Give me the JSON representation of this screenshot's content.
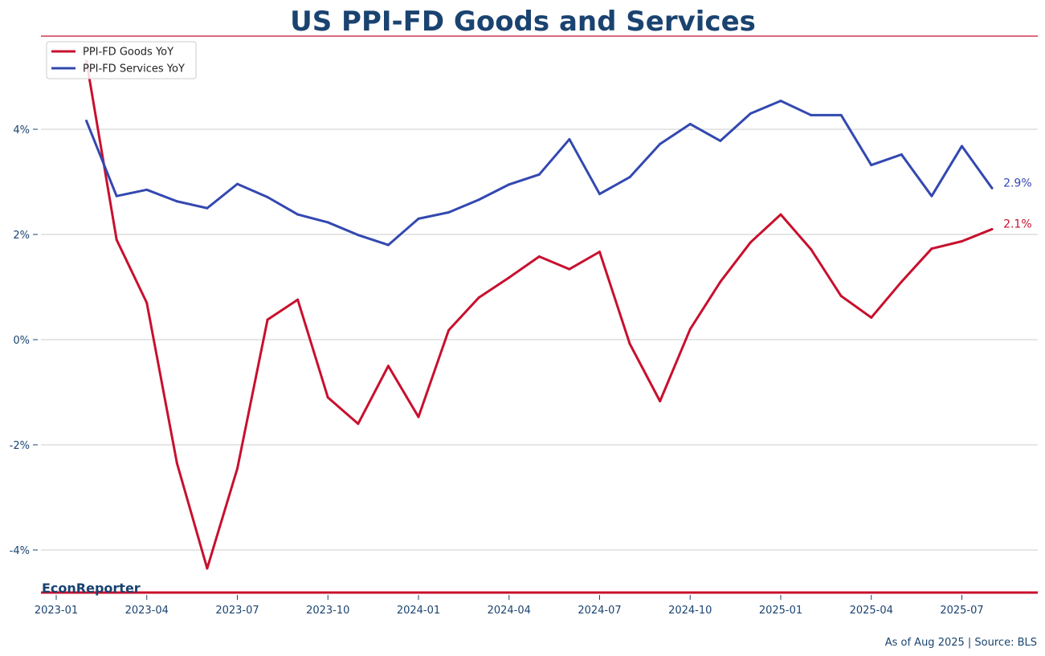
{
  "chart_data": {
    "type": "line",
    "title": "US PPI-FD Goods and Services",
    "x": [
      "2023-02",
      "2023-03",
      "2023-04",
      "2023-05",
      "2023-06",
      "2023-07",
      "2023-08",
      "2023-09",
      "2023-10",
      "2023-11",
      "2023-12",
      "2024-01",
      "2024-02",
      "2024-03",
      "2024-04",
      "2024-05",
      "2024-06",
      "2024-07",
      "2024-08",
      "2024-09",
      "2024-10",
      "2024-11",
      "2024-12",
      "2025-01",
      "2025-02",
      "2025-03",
      "2025-04",
      "2025-05",
      "2025-06",
      "2025-07",
      "2025-08"
    ],
    "x_ticks": [
      "2023-01",
      "2023-04",
      "2023-07",
      "2023-10",
      "2024-01",
      "2024-04",
      "2024-07",
      "2024-10",
      "2025-01",
      "2025-04",
      "2025-07"
    ],
    "y_ticks": [
      "-4%",
      "-2%",
      "0%",
      "2%",
      "4%"
    ],
    "ylim": [
      -4.8,
      5.8
    ],
    "grid": true,
    "legend_position": "top-left",
    "series": [
      {
        "name": "PPI-FD Goods YoY",
        "color": "#c8102e",
        "end_label": "2.1%",
        "values": [
          5.3,
          1.9,
          0.7,
          -2.35,
          -4.35,
          -2.45,
          0.38,
          0.76,
          -1.1,
          -1.6,
          -0.5,
          -1.47,
          0.18,
          0.8,
          1.18,
          1.58,
          1.34,
          1.67,
          -0.08,
          -1.17,
          0.2,
          1.1,
          1.85,
          2.38,
          1.72,
          0.83,
          0.42,
          1.1,
          1.73,
          1.87,
          2.1
        ]
      },
      {
        "name": "PPI-FD Services YoY",
        "color": "#3348b0",
        "end_label": "2.9%",
        "values": [
          4.16,
          2.73,
          2.85,
          2.63,
          2.5,
          2.96,
          2.71,
          2.38,
          2.23,
          1.99,
          1.8,
          2.3,
          2.42,
          2.66,
          2.95,
          3.14,
          3.81,
          2.77,
          3.09,
          3.72,
          4.1,
          3.78,
          4.3,
          4.54,
          4.27,
          4.27,
          3.32,
          3.52,
          2.73,
          3.68,
          2.88
        ]
      }
    ]
  },
  "footer": {
    "brand": "EconReporter",
    "source": "As of Aug 2025 | Source: BLS"
  },
  "style": {
    "title_color": "#1a4370",
    "accent_color": "#c8102e",
    "tick_color": "#1a4370",
    "grid_color": "#cccccc"
  }
}
